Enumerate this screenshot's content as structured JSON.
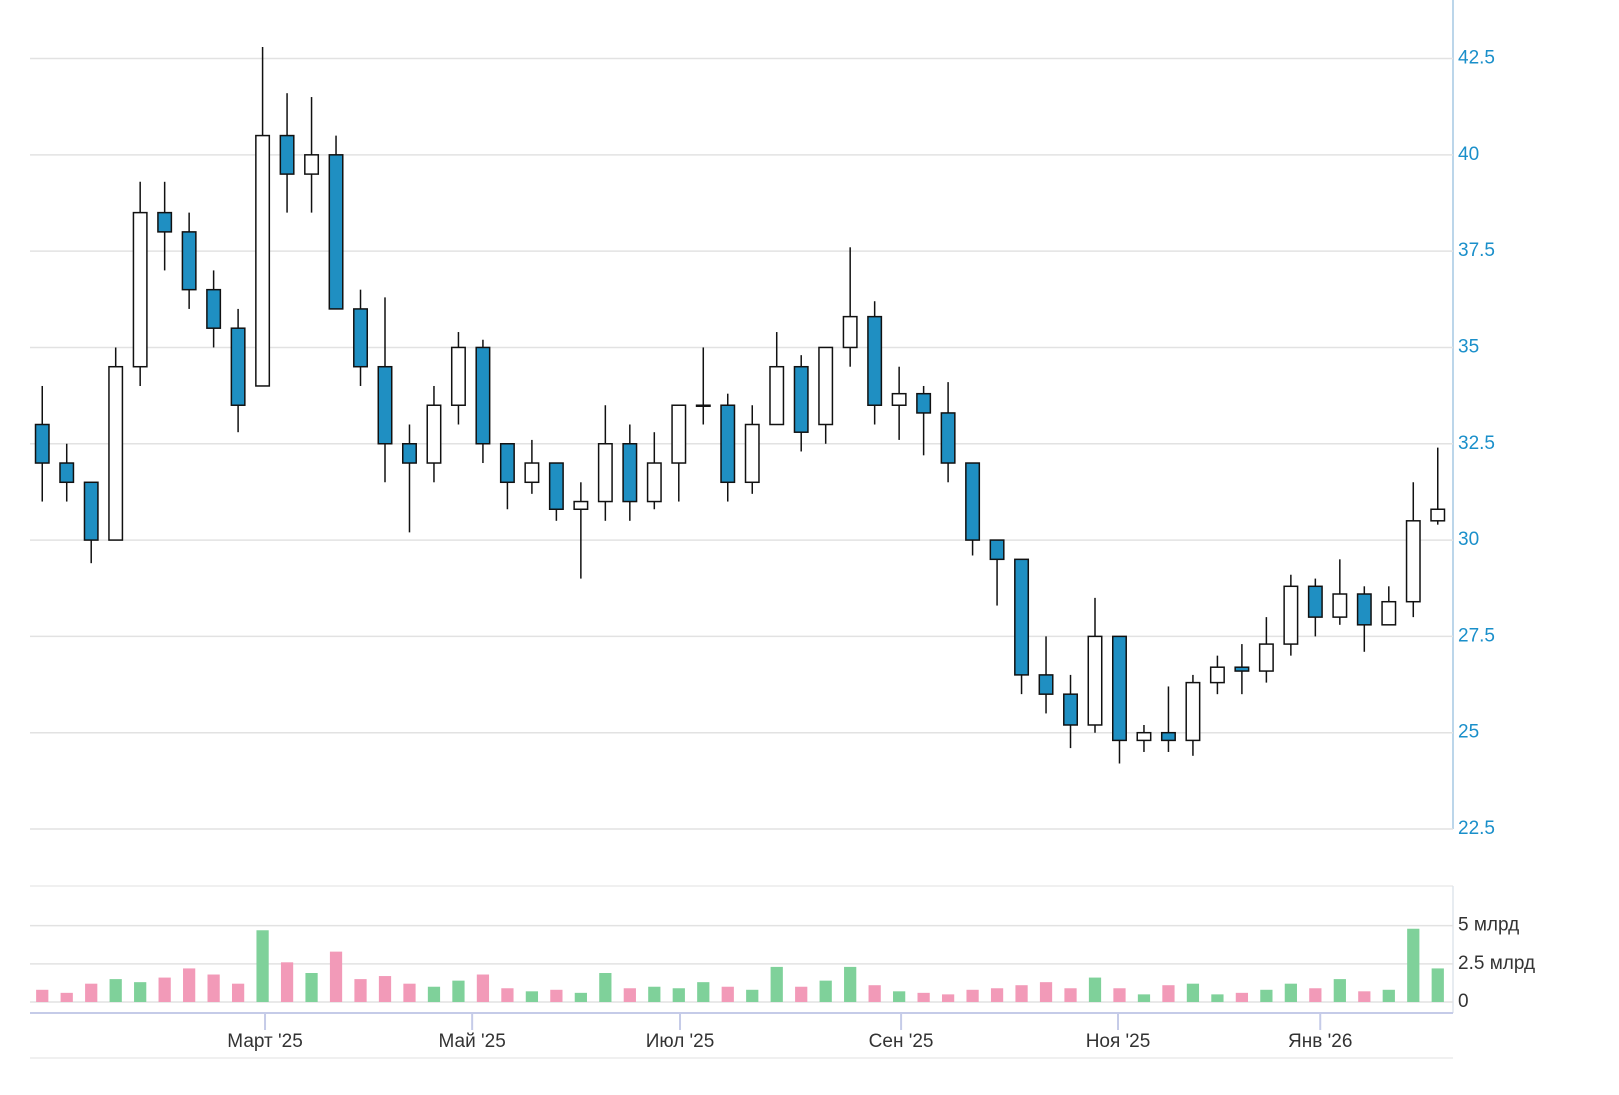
{
  "chart_data": [
    {
      "type": "candlestick",
      "x": [
        0,
        1,
        2,
        3,
        4,
        5,
        6,
        7,
        8,
        9,
        10,
        11,
        12,
        13,
        14,
        15,
        16,
        17,
        18,
        19,
        20,
        21,
        22,
        23,
        24,
        25,
        26,
        27,
        28,
        29,
        30,
        31,
        32,
        33,
        34,
        35,
        36,
        37,
        38,
        39,
        40,
        41,
        42,
        43,
        44,
        45,
        46,
        47,
        48,
        49,
        50,
        51,
        52,
        53,
        54,
        55,
        56,
        57
      ],
      "open": [
        33,
        32,
        31.5,
        30,
        34.5,
        38.5,
        38,
        36.5,
        35.5,
        34,
        40.5,
        39.5,
        40,
        36,
        34.5,
        32.5,
        32,
        33.5,
        35,
        32.5,
        31.5,
        32,
        30.8,
        31,
        32.5,
        31,
        32,
        33.5,
        33.5,
        31.5,
        33,
        34.5,
        33,
        35,
        35.8,
        33.5,
        33.8,
        33.3,
        32,
        30,
        29.5,
        26.5,
        26,
        25.2,
        27.5,
        24.8,
        25,
        24.8,
        26.3,
        26.7,
        26.6,
        27.3,
        28.8,
        28,
        28.6,
        27.8,
        28.4,
        30.5
      ],
      "high": [
        34,
        32.5,
        31.5,
        35,
        39.3,
        39.3,
        38.5,
        37,
        36,
        42.8,
        41.6,
        41.5,
        40.5,
        36.5,
        36.3,
        33,
        34,
        35.4,
        35.2,
        32.5,
        32.6,
        32,
        31.5,
        33.5,
        33,
        32.8,
        33.5,
        35,
        33.8,
        33.5,
        35.4,
        34.8,
        35,
        37.6,
        36.2,
        34.5,
        34,
        34.1,
        32,
        30,
        29.5,
        27.5,
        26.5,
        28.5,
        27.5,
        25.2,
        26.2,
        26.5,
        27,
        27.3,
        28,
        29.1,
        29,
        29.5,
        28.8,
        28.8,
        31.5,
        32.4
      ],
      "low": [
        31,
        31,
        29.4,
        30,
        34,
        37,
        36,
        35,
        32.8,
        34,
        38.5,
        38.5,
        36,
        34,
        31.5,
        30.2,
        31.5,
        33,
        32,
        30.8,
        31.2,
        30.5,
        29,
        30.5,
        30.5,
        30.8,
        31,
        33,
        31,
        31.2,
        33,
        32.3,
        32.5,
        34.5,
        33,
        32.6,
        32.2,
        31.5,
        29.6,
        28.3,
        26,
        25.5,
        24.6,
        25,
        24.2,
        24.5,
        24.5,
        24.4,
        26,
        26,
        26.3,
        27,
        27.5,
        27.8,
        27.1,
        27.8,
        28,
        30.4
      ],
      "close": [
        32,
        31.5,
        30,
        34.5,
        38.5,
        38,
        36.5,
        35.5,
        33.5,
        40.5,
        39.5,
        40,
        36,
        34.5,
        32.5,
        32,
        33.5,
        35,
        32.5,
        31.5,
        32,
        30.8,
        31,
        32.5,
        31,
        32,
        33.5,
        33.5,
        31.5,
        33,
        34.5,
        32.8,
        35,
        35.8,
        33.5,
        33.8,
        33.3,
        32,
        30,
        29.5,
        26.5,
        26,
        25.2,
        27.5,
        24.8,
        25,
        24.8,
        26.3,
        26.7,
        26.6,
        27.3,
        28.8,
        28,
        28.6,
        27.8,
        28.4,
        30.5,
        30.8
      ],
      "up_color": "#ffffff",
      "down_color": "#1f8fc2",
      "xlim": [
        -0.5,
        57.5
      ],
      "ylim": [
        22.5,
        43.5
      ],
      "yticks": [
        22.5,
        25,
        27.5,
        30,
        32.5,
        35,
        37.5,
        40,
        42.5
      ],
      "grid": true
    },
    {
      "type": "bar",
      "x": [
        0,
        1,
        2,
        3,
        4,
        5,
        6,
        7,
        8,
        9,
        10,
        11,
        12,
        13,
        14,
        15,
        16,
        17,
        18,
        19,
        20,
        21,
        22,
        23,
        24,
        25,
        26,
        27,
        28,
        29,
        30,
        31,
        32,
        33,
        34,
        35,
        36,
        37,
        38,
        39,
        40,
        41,
        42,
        43,
        44,
        45,
        46,
        47,
        48,
        49,
        50,
        51,
        52,
        53,
        54,
        55,
        56,
        57
      ],
      "values": [
        0.8,
        0.6,
        1.2,
        1.5,
        1.3,
        1.6,
        2.2,
        1.8,
        1.2,
        4.7,
        2.6,
        1.9,
        3.3,
        1.5,
        1.7,
        1.2,
        1.0,
        1.4,
        1.8,
        0.9,
        0.7,
        0.8,
        0.6,
        1.9,
        0.9,
        1.0,
        0.9,
        1.3,
        1.0,
        0.8,
        2.3,
        1.0,
        1.4,
        2.3,
        1.1,
        0.7,
        0.6,
        0.5,
        0.8,
        0.9,
        1.1,
        1.3,
        0.9,
        1.6,
        0.9,
        0.5,
        1.1,
        1.2,
        0.5,
        0.6,
        0.8,
        1.2,
        0.9,
        1.5,
        0.7,
        0.8,
        4.8,
        2.2
      ],
      "up_color": "#7fd19a",
      "down_color": "#f29ab8",
      "xlim": [
        -0.5,
        57.5
      ],
      "ylim": [
        0,
        7.6
      ],
      "yticks": [
        0,
        {
          "value": 2.5,
          "label": "2.5 млрд"
        },
        {
          "value": 5,
          "label": "5 млрд"
        }
      ],
      "xticks": [
        {
          "value": 9.1,
          "label": "Март '25"
        },
        {
          "value": 17.56,
          "label": "Май '25"
        },
        {
          "value": 26.05,
          "label": "Июл '25"
        },
        {
          "value": 35.08,
          "label": "Сен '25"
        },
        {
          "value": 43.94,
          "label": "Ноя '25"
        },
        {
          "value": 52.2,
          "label": "Янв '26"
        }
      ],
      "grid": true
    }
  ]
}
